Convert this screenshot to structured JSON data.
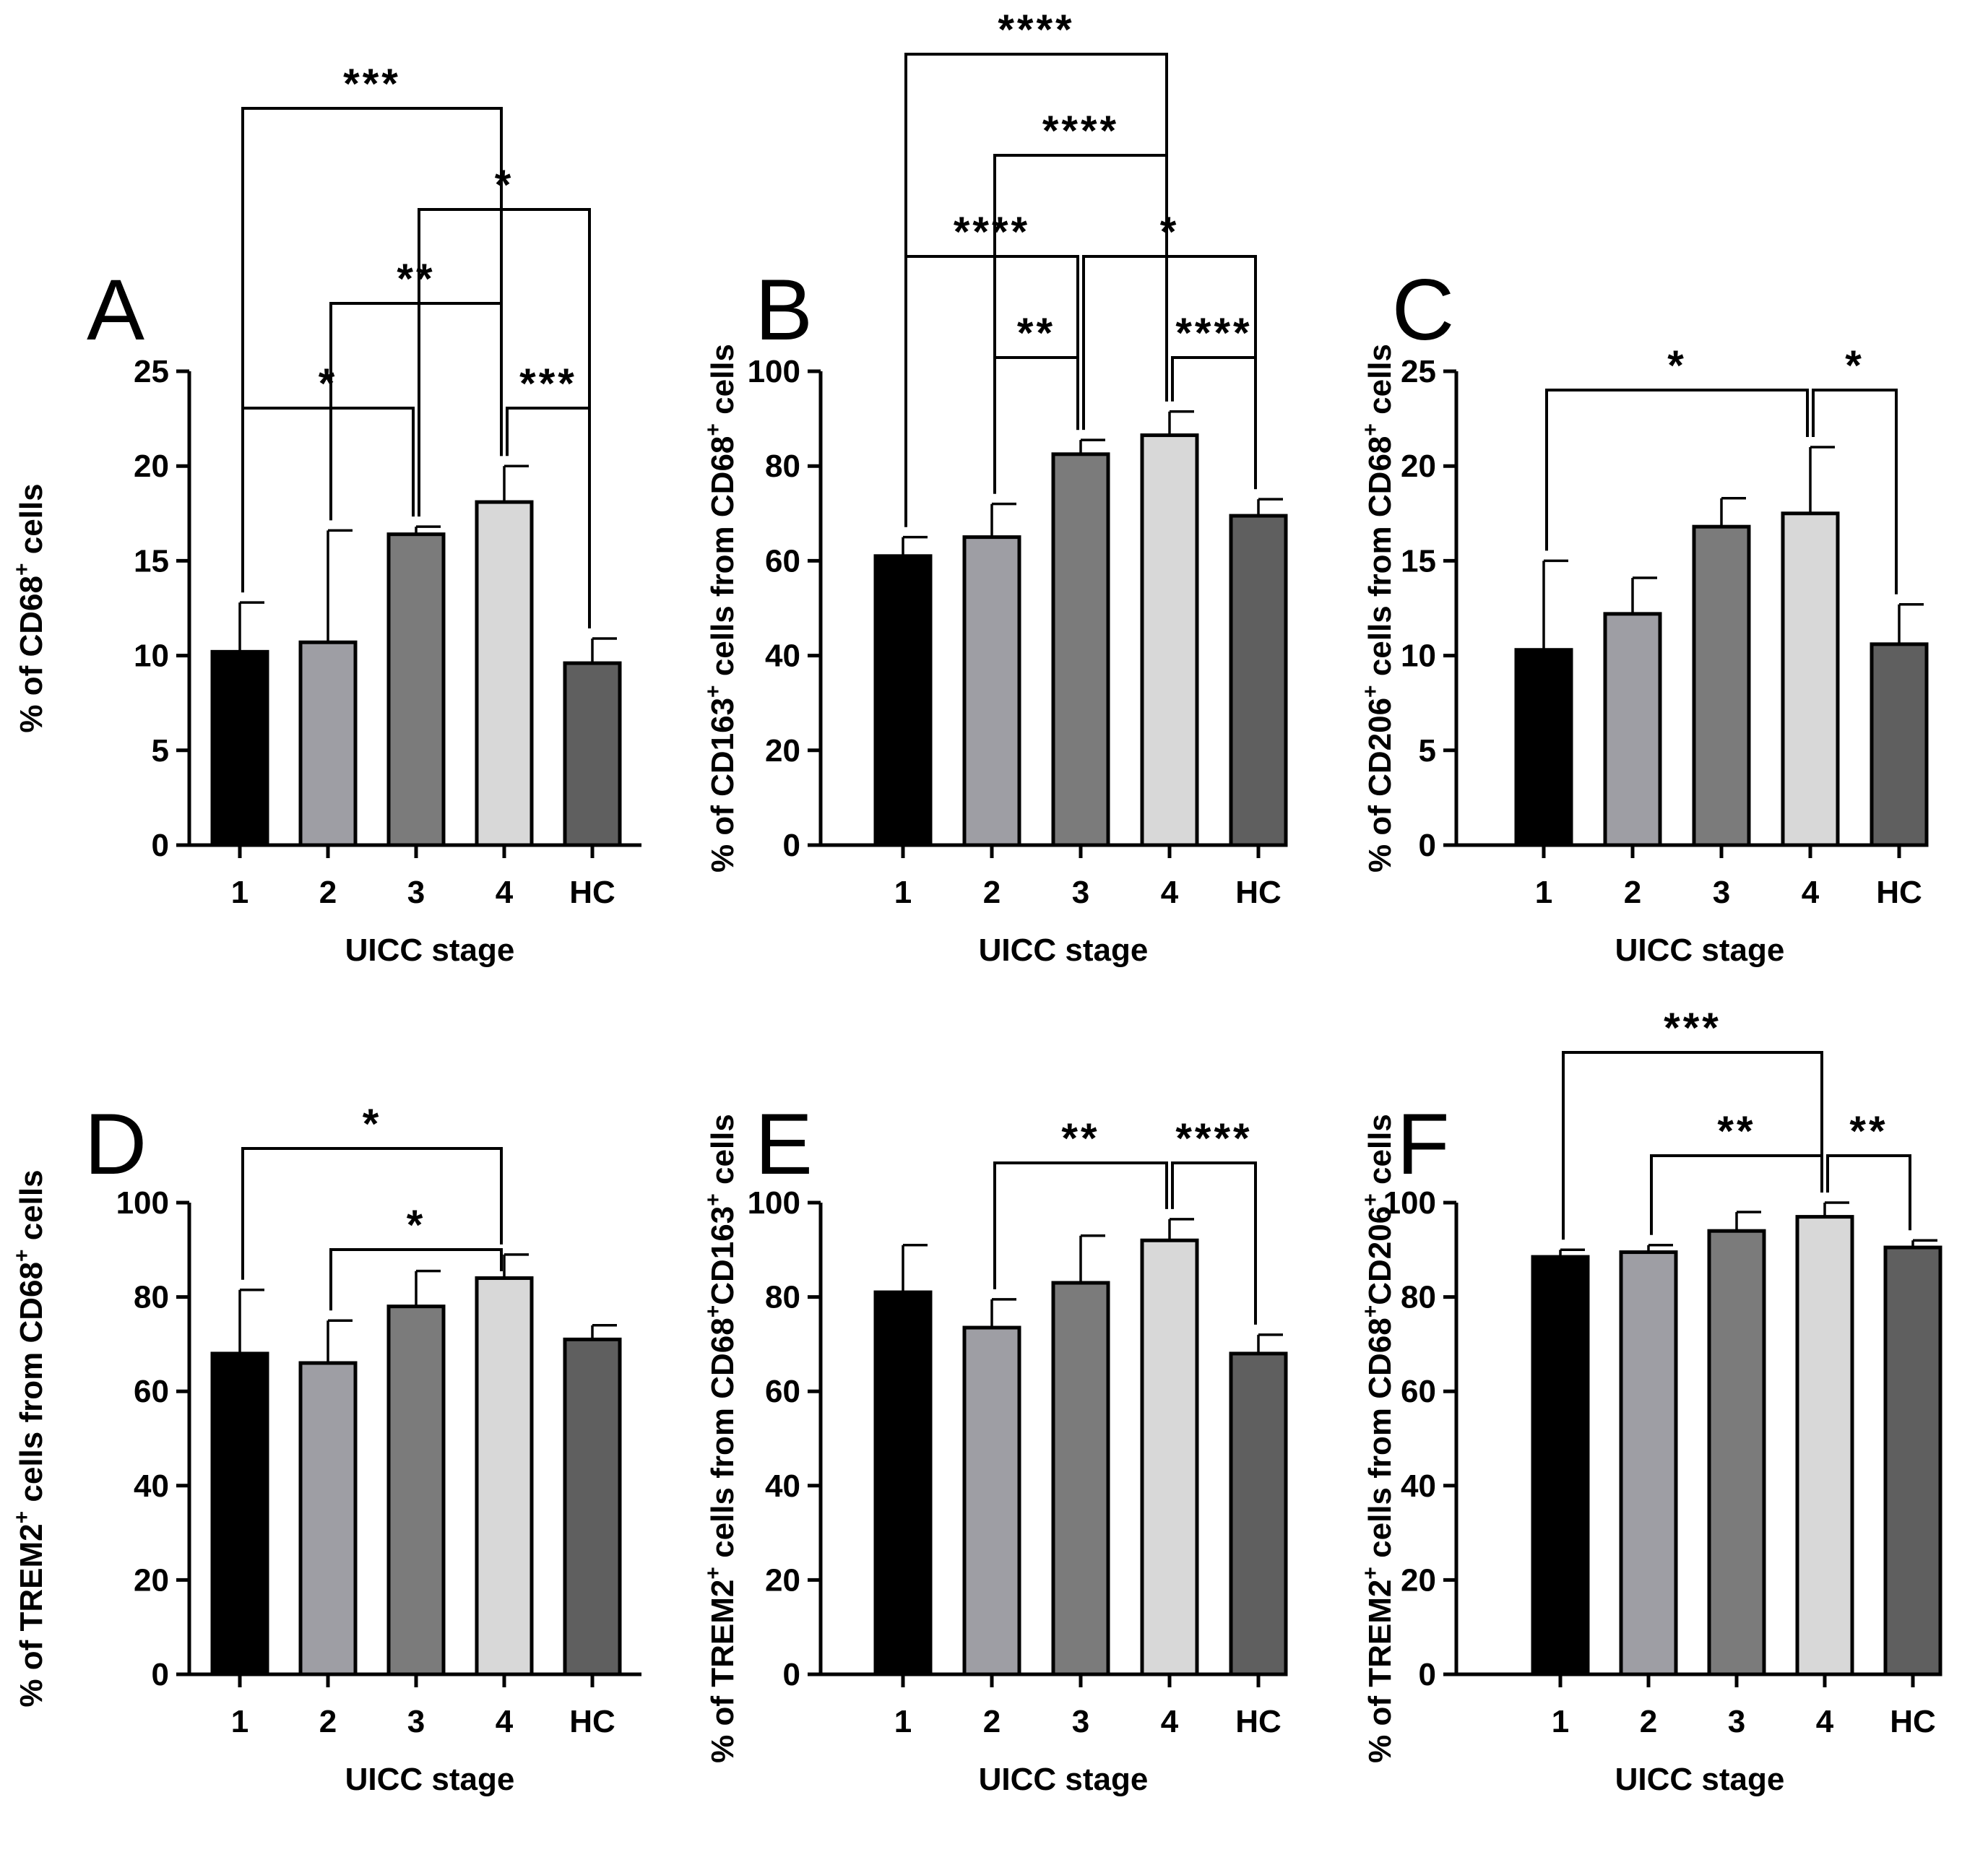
{
  "figure": {
    "bar_colors": [
      "#000000",
      "#9e9ea4",
      "#7b7b7b",
      "#d8d8d8",
      "#5f5f5f"
    ]
  },
  "chart_data": [
    {
      "panel": "A",
      "type": "bar",
      "categories": [
        "1",
        "2",
        "3",
        "4",
        "HC"
      ],
      "values": [
        10.2,
        10.7,
        16.4,
        18.1,
        9.6
      ],
      "errors": [
        2.6,
        5.9,
        0.4,
        1.9,
        1.3
      ],
      "xlabel": "UICC stage",
      "ylabel": {
        "pre": "% of CD68",
        "sup": "+",
        "post": " cells"
      },
      "ylim": [
        0,
        25
      ],
      "yticks": [
        0,
        5,
        10,
        15,
        20,
        25
      ],
      "comparisons": [
        {
          "from": 0,
          "to": 2,
          "label": "*"
        },
        {
          "from": 3,
          "to": 4,
          "label": "***"
        },
        {
          "from": 1,
          "to": 3,
          "label": "**"
        },
        {
          "from": 2,
          "to": 4,
          "label": "*"
        },
        {
          "from": 0,
          "to": 3,
          "label": "***"
        }
      ]
    },
    {
      "panel": "B",
      "type": "bar",
      "categories": [
        "1",
        "2",
        "3",
        "4",
        "HC"
      ],
      "values": [
        61,
        65,
        82.5,
        86.5,
        69.5
      ],
      "errors": [
        4,
        7,
        3,
        5,
        3.5
      ],
      "xlabel": "UICC stage",
      "ylabel": {
        "pre": "% of CD163",
        "sup": "+",
        "post": " cells from CD68",
        "sup2": "+",
        "post2": " cells"
      },
      "ylim": [
        0,
        100
      ],
      "yticks": [
        0,
        20,
        40,
        60,
        80,
        100
      ],
      "comparisons": [
        {
          "from": 1,
          "to": 2,
          "label": "**"
        },
        {
          "from": 3,
          "to": 4,
          "label": "****"
        },
        {
          "from": 0,
          "to": 2,
          "label": "****"
        },
        {
          "from": 2,
          "to": 4,
          "label": "*"
        },
        {
          "from": 1,
          "to": 3,
          "label": "****"
        },
        {
          "from": 0,
          "to": 3,
          "label": "****"
        }
      ]
    },
    {
      "panel": "C",
      "type": "bar",
      "categories": [
        "1",
        "2",
        "3",
        "4",
        "HC"
      ],
      "values": [
        10.3,
        12.2,
        16.8,
        17.5,
        10.6
      ],
      "errors": [
        4.7,
        1.9,
        1.5,
        3.5,
        2.1
      ],
      "xlabel": "UICC stage",
      "ylabel": {
        "pre": "% of CD206",
        "sup": "+",
        "post": " cells from CD68",
        "sup2": "+",
        "post2": " cells"
      },
      "ylim": [
        0,
        25
      ],
      "yticks": [
        0,
        5,
        10,
        15,
        20,
        25
      ],
      "comparisons": [
        {
          "from": 0,
          "to": 3,
          "label": "*"
        },
        {
          "from": 3,
          "to": 4,
          "label": "*"
        }
      ]
    },
    {
      "panel": "D",
      "type": "bar",
      "categories": [
        "1",
        "2",
        "3",
        "4",
        "HC"
      ],
      "values": [
        68,
        66,
        78,
        84,
        71
      ],
      "errors": [
        13.5,
        9,
        7.5,
        5,
        3
      ],
      "xlabel": "UICC stage",
      "ylabel": {
        "pre": "% of TREM2",
        "sup": "+",
        "post": " cells from CD68",
        "sup2": "+",
        "post2": " cells"
      },
      "ylim": [
        0,
        100
      ],
      "yticks": [
        0,
        20,
        40,
        60,
        80,
        100
      ],
      "comparisons": [
        {
          "from": 1,
          "to": 3,
          "label": "*"
        },
        {
          "from": 0,
          "to": 3,
          "label": "*"
        }
      ]
    },
    {
      "panel": "E",
      "type": "bar",
      "categories": [
        "1",
        "2",
        "3",
        "4",
        "HC"
      ],
      "values": [
        81,
        73.5,
        83,
        92,
        68
      ],
      "errors": [
        10,
        6,
        10,
        4.5,
        4
      ],
      "xlabel": "UICC stage",
      "ylabel": {
        "pre": "% of TREM2",
        "sup": "+",
        "post": " cells from CD68",
        "sup2": "+",
        "post2": "CD163",
        "sup3": "+",
        "post3": " cells"
      },
      "ylim": [
        0,
        100
      ],
      "yticks": [
        0,
        20,
        40,
        60,
        80,
        100
      ],
      "comparisons": [
        {
          "from": 1,
          "to": 3,
          "label": "**"
        },
        {
          "from": 3,
          "to": 4,
          "label": "****"
        }
      ]
    },
    {
      "panel": "F",
      "type": "bar",
      "categories": [
        "1",
        "2",
        "3",
        "4",
        "HC"
      ],
      "values": [
        88.5,
        89.5,
        94,
        97,
        90.5
      ],
      "errors": [
        1.5,
        1.5,
        4,
        3,
        1.5
      ],
      "xlabel": "UICC stage",
      "ylabel": {
        "pre": "% of TREM2",
        "sup": "+",
        "post": " cells from CD68",
        "sup2": "+",
        "post2": "CD206",
        "sup3": "+",
        "post3": " cells"
      },
      "ylim": [
        0,
        100
      ],
      "yticks": [
        0,
        20,
        40,
        60,
        80,
        100
      ],
      "comparisons": [
        {
          "from": 1,
          "to": 3,
          "label": "**"
        },
        {
          "from": 3,
          "to": 4,
          "label": "**"
        },
        {
          "from": 0,
          "to": 3,
          "label": "***"
        }
      ]
    }
  ]
}
